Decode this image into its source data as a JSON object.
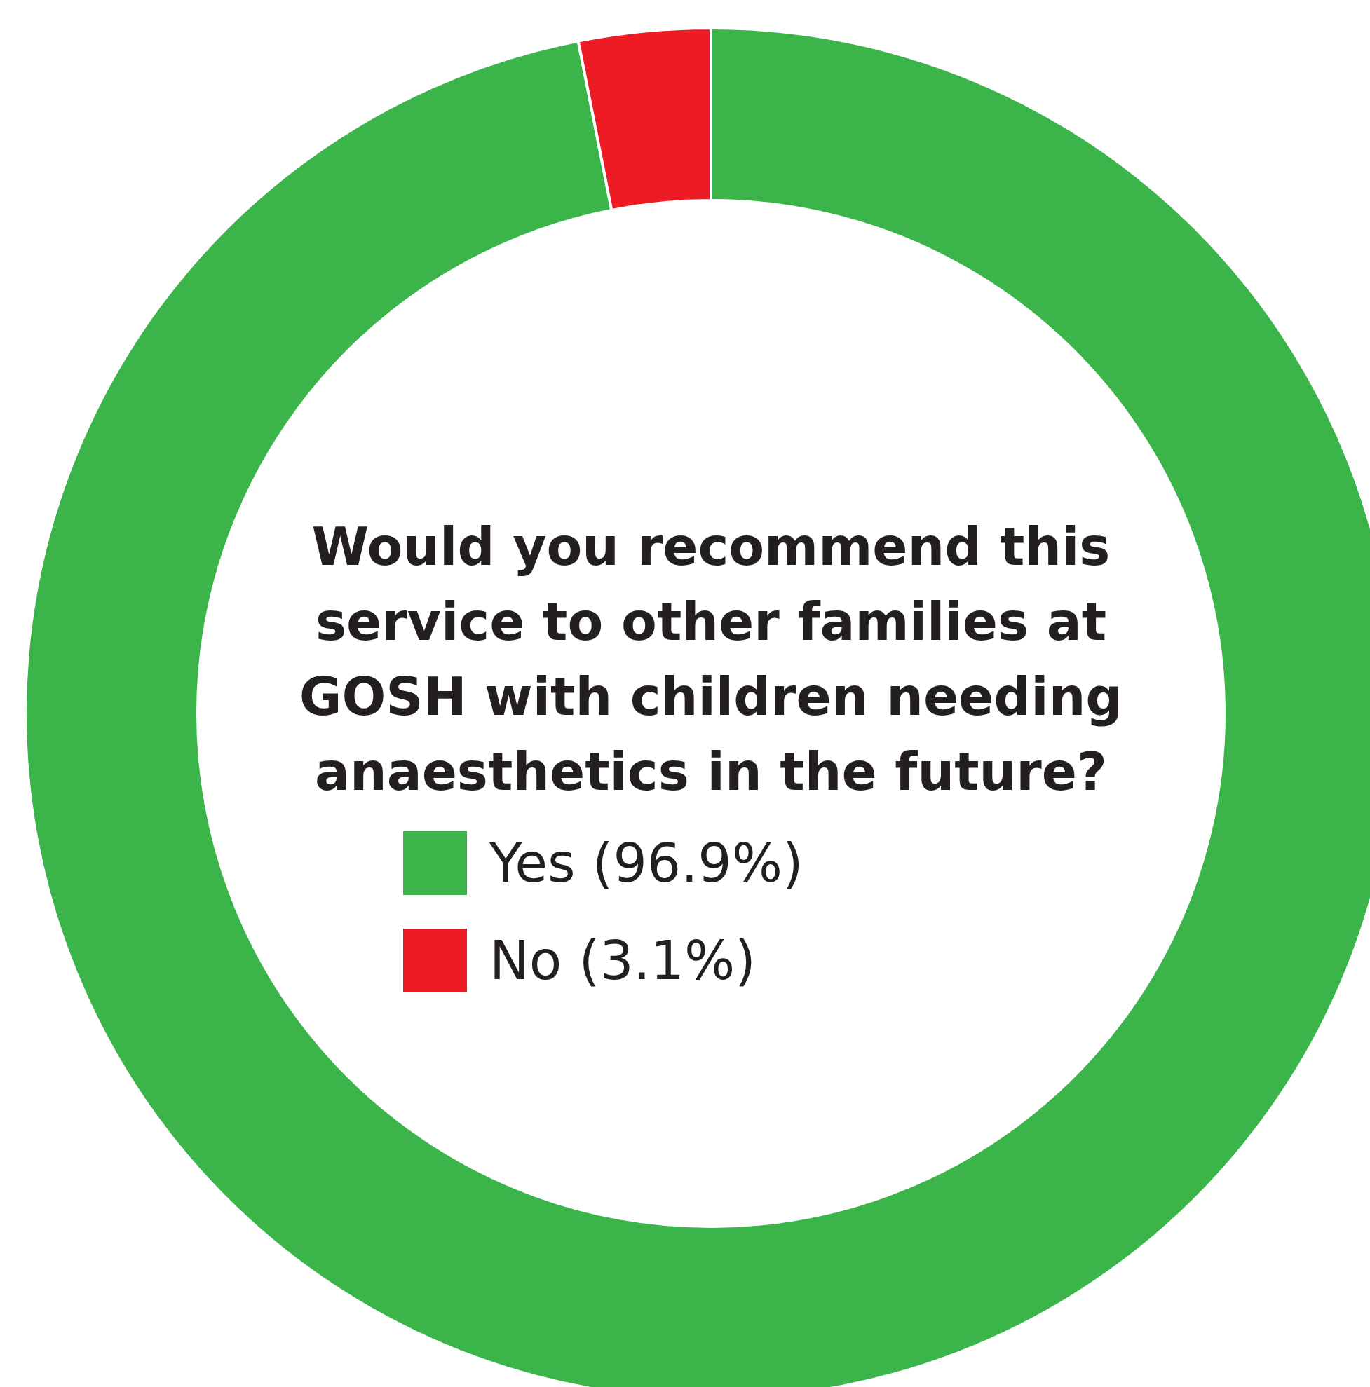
{
  "chart_data": {
    "type": "donut",
    "title": "Would you recommend this service to other families at GOSH with children needing anaesthetics in the future?",
    "categories": [
      "Yes (96.9%)",
      "No (3.1%)"
    ],
    "values": [
      96.9,
      3.1
    ],
    "colors": [
      "#3bb54a",
      "#ed1c24"
    ],
    "legend": "center"
  }
}
